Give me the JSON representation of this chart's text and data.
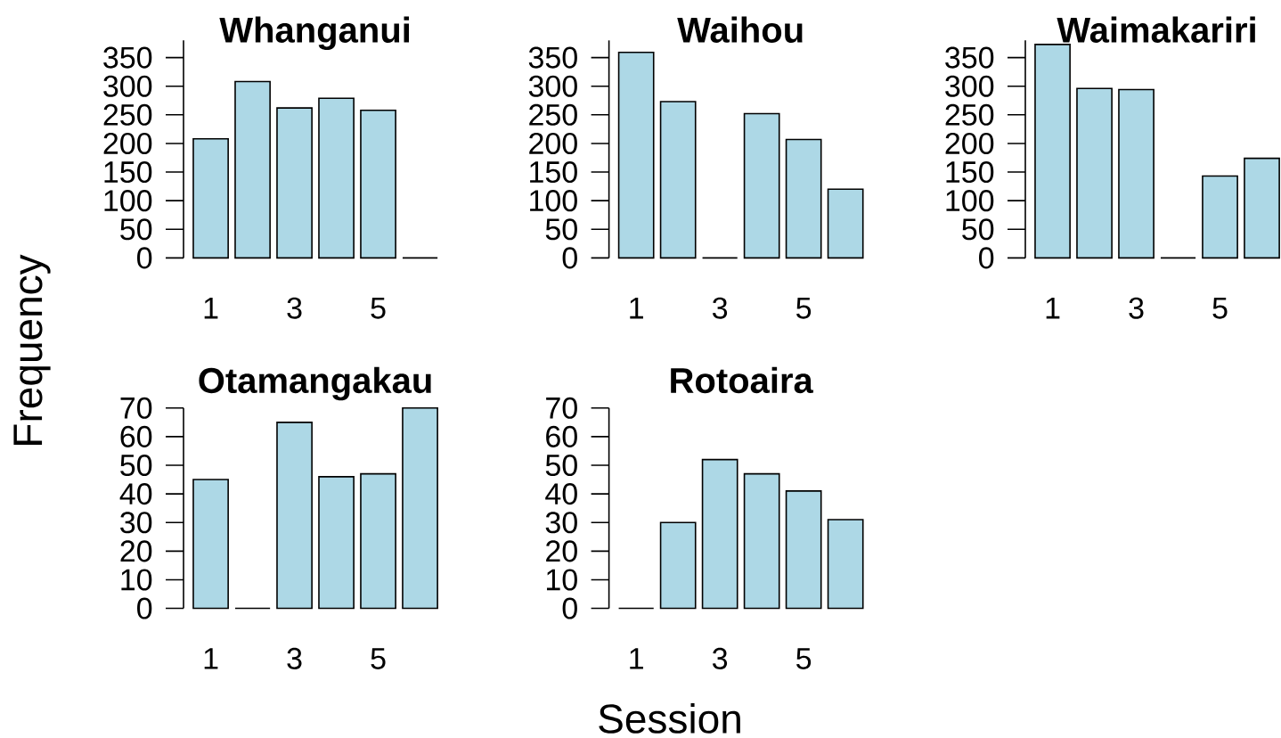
{
  "chart_data": [
    {
      "type": "bar",
      "title": "Whanganui",
      "categories": [
        "1",
        null,
        "3",
        null,
        "5",
        null
      ],
      "values": [
        208,
        308,
        262,
        279,
        258,
        0
      ],
      "colors": [
        "#add8e6",
        "#add8e6",
        "#add8e6",
        "#add8e6",
        "#add8e6",
        "#000000"
      ],
      "ylim": [
        0,
        380
      ],
      "yticks": [
        0,
        50,
        100,
        150,
        200,
        250,
        300,
        350
      ]
    },
    {
      "type": "bar",
      "title": "Waihou",
      "categories": [
        "1",
        null,
        "3",
        null,
        "5",
        null
      ],
      "values": [
        359,
        273,
        0,
        252,
        207,
        120
      ],
      "colors": [
        "#add8e6",
        "#add8e6",
        "#000000",
        "#add8e6",
        "#add8e6",
        "#add8e6"
      ],
      "ylim": [
        0,
        380
      ],
      "yticks": [
        0,
        50,
        100,
        150,
        200,
        250,
        300,
        350
      ]
    },
    {
      "type": "bar",
      "title": "Waimakariri",
      "categories": [
        "1",
        null,
        "3",
        null,
        "5",
        null
      ],
      "values": [
        373,
        296,
        294,
        0,
        143,
        174
      ],
      "colors": [
        "#add8e6",
        "#add8e6",
        "#add8e6",
        "#000000",
        "#add8e6",
        "#add8e6"
      ],
      "ylim": [
        0,
        380
      ],
      "yticks": [
        0,
        50,
        100,
        150,
        200,
        250,
        300,
        350
      ]
    },
    {
      "type": "bar",
      "title": "Otamangakau",
      "ylabel": "Frequency",
      "categories": [
        "1",
        null,
        "3",
        null,
        "5",
        null
      ],
      "values": [
        45,
        0,
        65,
        46,
        47,
        70
      ],
      "colors": [
        "#add8e6",
        "#000000",
        "#add8e6",
        "#add8e6",
        "#add8e6",
        "#add8e6"
      ],
      "ylim": [
        0,
        70
      ],
      "yticks": [
        0,
        10,
        20,
        30,
        40,
        50,
        60,
        70
      ]
    },
    {
      "type": "bar",
      "title": "Rotoaira",
      "xlabel": "Session",
      "categories": [
        "1",
        null,
        "3",
        null,
        "5",
        null
      ],
      "values": [
        0,
        30,
        52,
        47,
        41,
        31
      ],
      "colors": [
        "#000000",
        "#add8e6",
        "#add8e6",
        "#add8e6",
        "#add8e6",
        "#add8e6"
      ],
      "ylim": [
        0,
        70
      ],
      "yticks": [
        0,
        10,
        20,
        30,
        40,
        50,
        60,
        70
      ]
    }
  ]
}
